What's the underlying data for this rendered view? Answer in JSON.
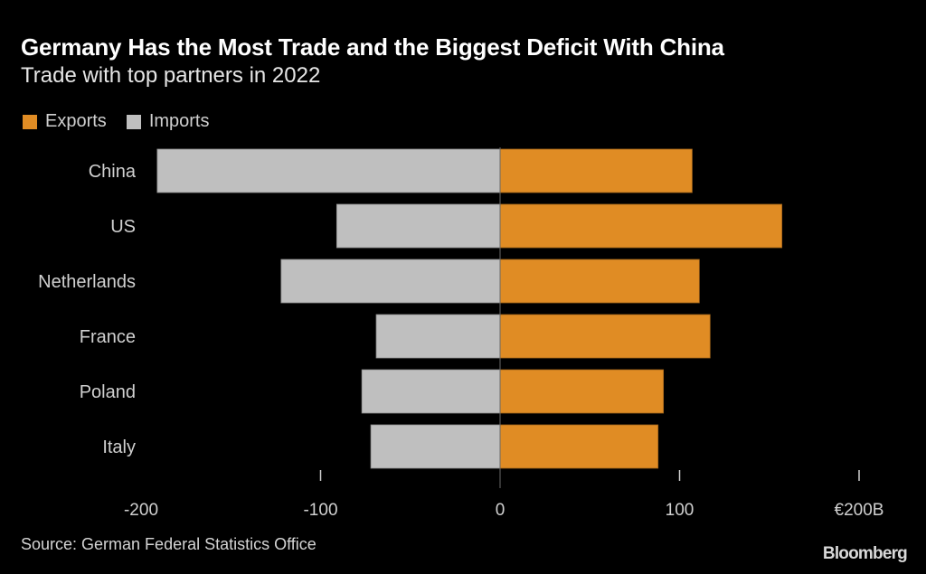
{
  "chart_data": {
    "type": "bar",
    "orientation": "horizontal-diverging",
    "title": "Germany Has the Most Trade and the Biggest Deficit With China",
    "subtitle": "Trade with top partners in 2022",
    "categories": [
      "China",
      "US",
      "Netherlands",
      "France",
      "Poland",
      "Italy"
    ],
    "series": [
      {
        "name": "Exports",
        "color": "#e08c24",
        "values": [
          107,
          157,
          111,
          117,
          91,
          88
        ]
      },
      {
        "name": "Imports",
        "color": "#bfbfbf",
        "values": [
          -191,
          -91,
          -122,
          -69,
          -77,
          -72
        ]
      }
    ],
    "xlim": [
      -200,
      200
    ],
    "xticks": [
      -200,
      -100,
      0,
      100,
      200
    ],
    "xtick_labels": [
      "-200",
      "-100",
      "0",
      "100",
      "€200B"
    ],
    "xlabel": "",
    "ylabel": "",
    "unit": "€ billions",
    "grid": false,
    "legend": {
      "placement": "top-left",
      "entries": [
        "Exports",
        "Imports"
      ]
    }
  },
  "footer": {
    "source": "Source: German Federal Statistics Office",
    "brand": "Bloomberg"
  }
}
